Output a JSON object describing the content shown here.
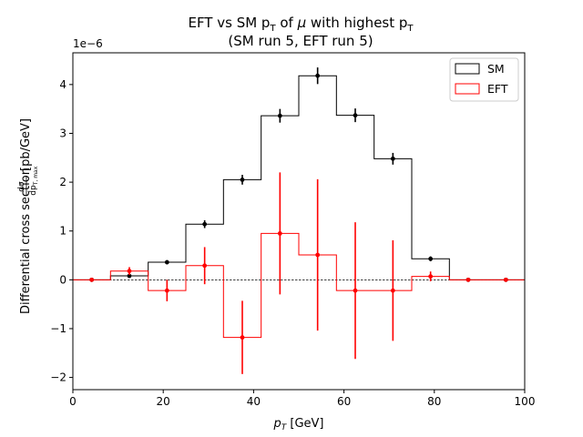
{
  "chart_data": {
    "type": "step-histogram",
    "title_line1": "EFT vs SM p",
    "title_sub": "T",
    "title_line1b": " of ",
    "title_mu": "μ",
    "title_line1c": " with highest p",
    "title_sub2": "T",
    "title_line2": "(SM run 5, EFT run 5)",
    "xlabel_main": "p",
    "xlabel_sub": "T",
    "xlabel_unit": " [GeV]",
    "ylabel_main": "Differential cross section ",
    "ylabel_frac_num": "dσ",
    "ylabel_frac_den": "dp",
    "ylabel_frac_den_sub": "T, max",
    "ylabel_unit": " [pb/GeV]",
    "y_offset_text": "1e−6",
    "xlim": [
      0,
      100
    ],
    "ylim": [
      -2.25,
      4.65
    ],
    "y_scale": 1e-06,
    "bin_edges": [
      0,
      8.33,
      16.67,
      25,
      33.33,
      41.67,
      50,
      58.33,
      66.67,
      75,
      83.33,
      91.67,
      100
    ],
    "x_ticks": [
      0,
      20,
      40,
      60,
      80,
      100
    ],
    "x_tick_labels": [
      "0",
      "20",
      "40",
      "60",
      "80",
      "100"
    ],
    "y_ticks": [
      -2,
      -1,
      0,
      1,
      2,
      3,
      4
    ],
    "y_tick_labels": [
      "−2",
      "−1",
      "0",
      "1",
      "2",
      "3",
      "4"
    ],
    "series": [
      {
        "name": "SM",
        "color": "#000000",
        "values": [
          0.0,
          0.08,
          0.36,
          1.14,
          2.05,
          3.36,
          4.18,
          3.37,
          2.48,
          0.43,
          0.0,
          0.0
        ],
        "errors": [
          0.0,
          0.03,
          0.04,
          0.08,
          0.1,
          0.14,
          0.17,
          0.14,
          0.12,
          0.05,
          0.0,
          0.0
        ]
      },
      {
        "name": "EFT",
        "color": "#ff0000",
        "values": [
          0.0,
          0.18,
          -0.22,
          0.29,
          -1.18,
          0.95,
          0.51,
          -0.22,
          -0.22,
          0.07,
          0.0,
          0.0
        ],
        "errors": [
          0.0,
          0.08,
          0.22,
          0.38,
          0.75,
          1.25,
          1.55,
          1.4,
          1.03,
          0.1,
          0.0,
          0.0
        ]
      }
    ],
    "legend": {
      "position": "top-right",
      "entries": [
        "SM",
        "EFT"
      ]
    },
    "zero_line": true,
    "grid": false
  }
}
